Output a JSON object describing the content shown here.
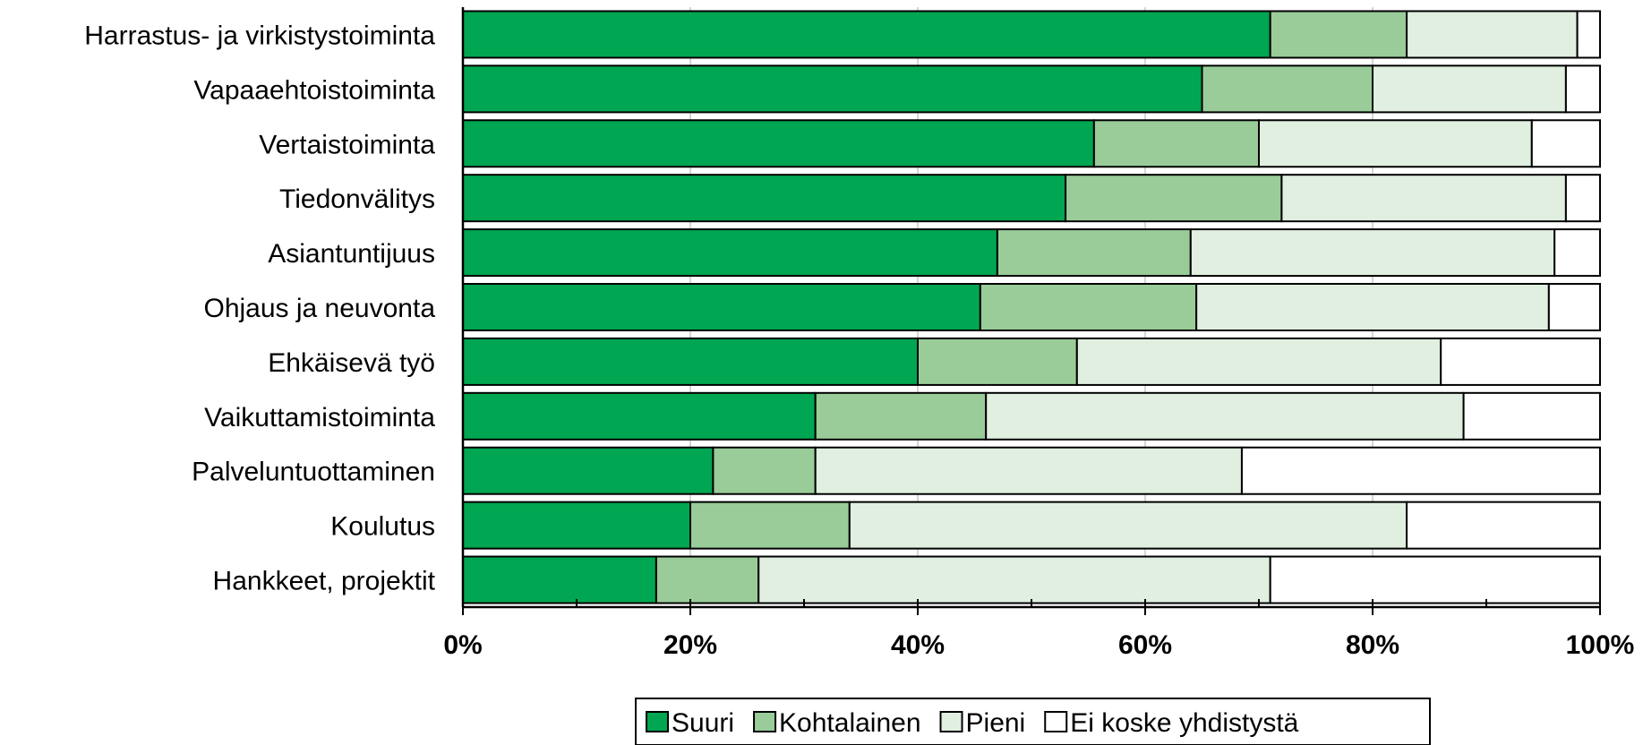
{
  "chart_data": {
    "type": "bar",
    "orientation": "horizontal",
    "stacked": "percent",
    "categories": [
      "Harrastus- ja virkistystoiminta",
      "Vapaaehtoistoiminta",
      "Vertaistoiminta",
      "Tiedonvälitys",
      "Asiantuntijuus",
      "Ohjaus ja neuvonta",
      "Ehkäisevä työ",
      "Vaikuttamistoiminta",
      "Palveluntuottaminen",
      "Koulutus",
      "Hankkeet, projektit"
    ],
    "series": [
      {
        "name": "Suuri",
        "color": "#00a651",
        "values": [
          71,
          65,
          55.5,
          53,
          47,
          45.5,
          40,
          31,
          22,
          20,
          17
        ]
      },
      {
        "name": "Kohtalainen",
        "color": "#99cc99",
        "values": [
          12,
          15,
          14.5,
          19,
          17,
          19,
          14,
          15,
          9,
          14,
          9
        ]
      },
      {
        "name": "Pieni",
        "color": "#e0efe0",
        "values": [
          15,
          17,
          24,
          25,
          32,
          31,
          32,
          42,
          37.5,
          49,
          45
        ]
      },
      {
        "name": "Ei koske yhdistystä",
        "color": "#ffffff",
        "values": [
          2,
          3,
          6,
          3,
          4,
          4.5,
          14,
          12,
          31.5,
          17,
          29
        ]
      }
    ],
    "xlim": [
      0,
      100
    ],
    "x_ticks": [
      "0%",
      "20%",
      "40%",
      "60%",
      "80%",
      "100%"
    ],
    "legend_position": "bottom",
    "grid": true
  }
}
